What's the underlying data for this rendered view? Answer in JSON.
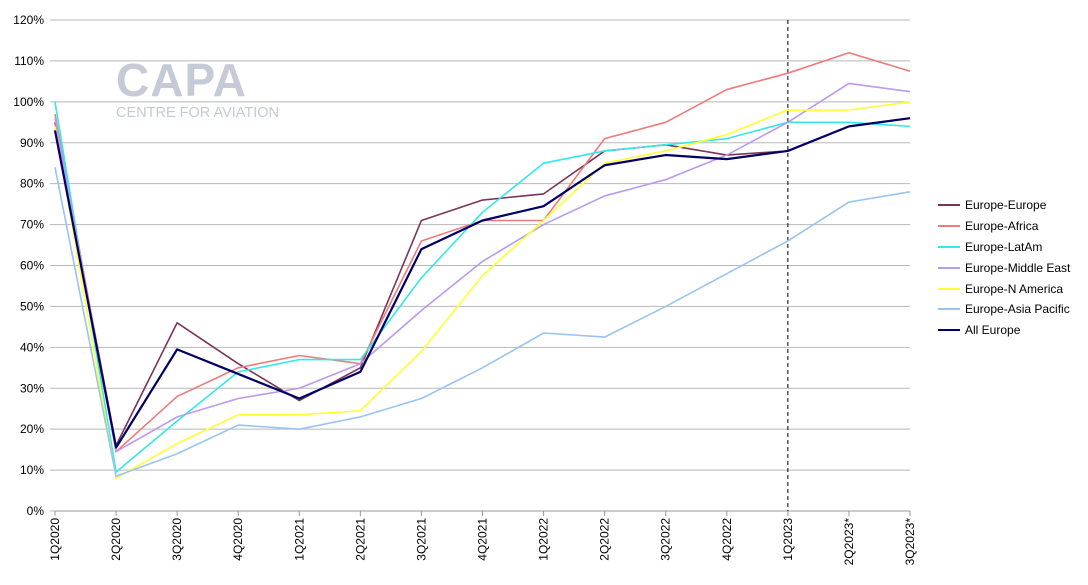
{
  "logo": {
    "main": "CAPA",
    "sub": "CENTRE FOR AVIATION"
  },
  "chart_data": {
    "type": "line",
    "title": "",
    "xlabel": "",
    "ylabel": "",
    "ylim": [
      0,
      120
    ],
    "y_tick_format": "percent",
    "y_ticks": [
      "0%",
      "10%",
      "20%",
      "30%",
      "40%",
      "50%",
      "60%",
      "70%",
      "80%",
      "90%",
      "100%",
      "110%",
      "120%"
    ],
    "grid": "horizontal",
    "legend_position": "right",
    "vertical_marker": "1Q2023",
    "categories": [
      "1Q2020",
      "2Q2020",
      "3Q2020",
      "4Q2020",
      "1Q2021",
      "2Q2021",
      "3Q2021",
      "4Q2021",
      "1Q2022",
      "2Q2022",
      "3Q2022",
      "4Q2022",
      "1Q2023",
      "2Q2023*",
      "3Q2023*"
    ],
    "series": [
      {
        "name": "Europe-Europe",
        "color": "#7b3559",
        "values": [
          95,
          16,
          46,
          36,
          27,
          35,
          71,
          76,
          77.5,
          88,
          89.5,
          87,
          88,
          94,
          96
        ]
      },
      {
        "name": "Europe-Africa",
        "color": "#ee7b7b",
        "values": [
          97,
          14.5,
          28,
          35,
          38,
          36,
          66,
          71,
          71,
          91,
          95,
          103,
          107,
          112,
          107.5
        ]
      },
      {
        "name": "Europe-LatAm",
        "color": "#33e8e8",
        "values": [
          100,
          9.5,
          22,
          34,
          37,
          37,
          57,
          73,
          85,
          88,
          89.5,
          91,
          95,
          95,
          94
        ]
      },
      {
        "name": "Europe-Middle East",
        "color": "#bb99ee",
        "values": [
          96,
          14.5,
          23,
          27.5,
          30,
          36,
          49,
          61,
          70,
          77,
          81,
          87,
          95,
          104.5,
          102.5
        ]
      },
      {
        "name": "Europe-N America",
        "color": "#ffff33",
        "values": [
          94,
          8,
          16.5,
          23.5,
          23.5,
          24.5,
          39,
          57.5,
          71,
          85,
          88,
          92,
          98,
          98,
          100
        ]
      },
      {
        "name": "Europe-Asia Pacific",
        "color": "#99c4f2",
        "values": [
          84,
          8.5,
          14,
          21,
          20,
          23,
          27.5,
          35,
          43.5,
          42.5,
          50,
          58,
          66,
          75.5,
          78
        ]
      },
      {
        "name": "All Europe",
        "color": "#000066",
        "values": [
          93,
          15.5,
          39.5,
          33.5,
          27.5,
          34,
          64,
          71,
          74.5,
          84.5,
          87,
          86,
          88,
          94,
          96
        ]
      }
    ]
  }
}
